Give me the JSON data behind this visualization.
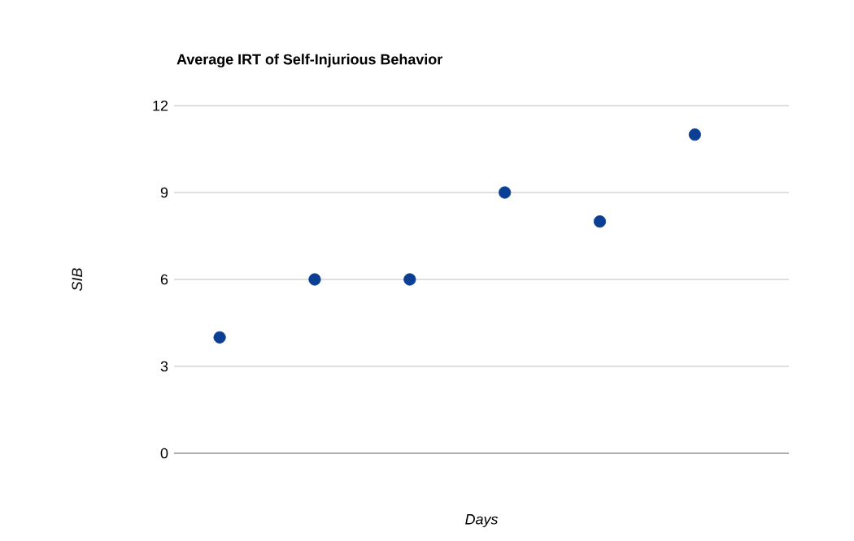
{
  "chart_data": {
    "type": "scatter",
    "title": "Average IRT of Self-Injurious Behavior",
    "xlabel": "Days",
    "ylabel": "SIB",
    "categories": [
      null,
      null,
      null,
      null,
      null,
      null
    ],
    "values": [
      4,
      6,
      6,
      9,
      8,
      11
    ],
    "color": "#0b3f93",
    "ylim": [
      0,
      12
    ],
    "yticks": [
      0,
      3,
      6,
      9,
      12
    ],
    "grid": "y",
    "marker": "circle"
  }
}
